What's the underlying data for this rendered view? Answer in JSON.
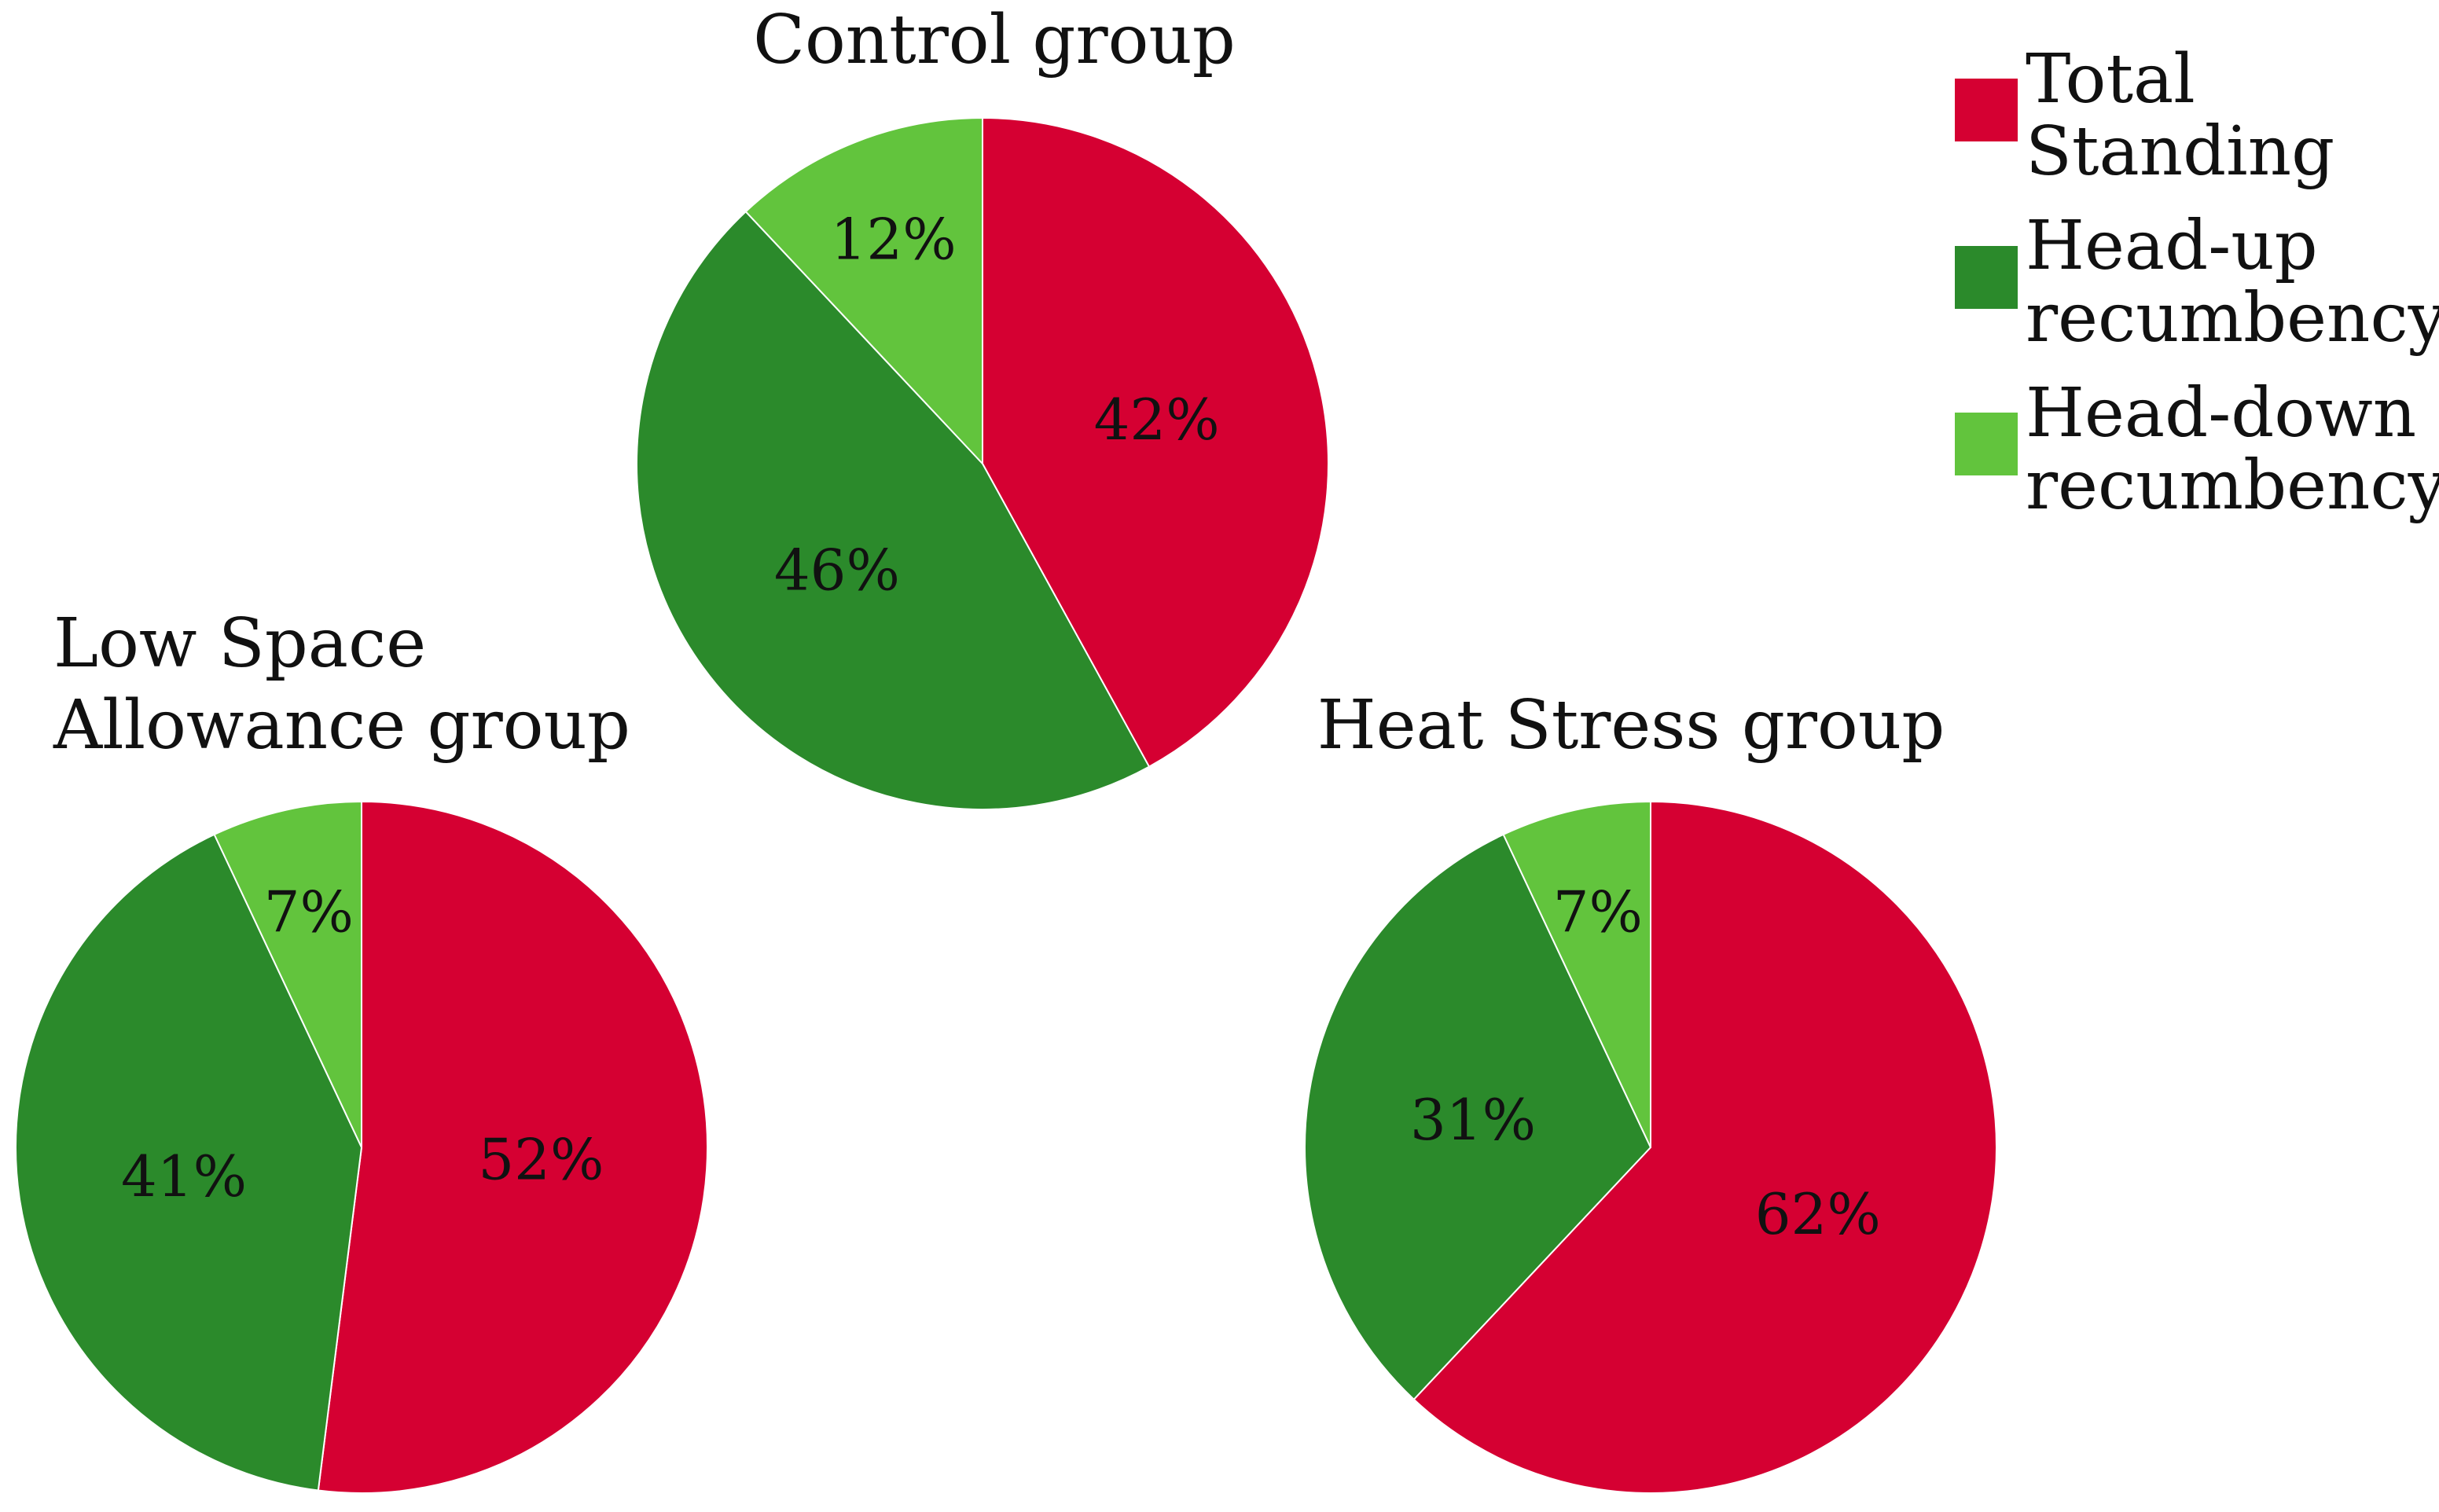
{
  "legend": [
    {
      "label_lines": [
        "Total",
        "Standing"
      ],
      "color": "#d50032"
    },
    {
      "label_lines": [
        "Head-up",
        "recumbency"
      ],
      "color": "#2b8a2b"
    },
    {
      "label_lines": [
        "Head-down",
        "recumbency"
      ],
      "color": "#62c43d"
    }
  ],
  "chart_data": [
    {
      "type": "pie",
      "title_lines": [
        "Control group"
      ],
      "categories": [
        "Total Standing",
        "Head-up recumbency",
        "Head-down recumbency"
      ],
      "values": [
        42,
        46,
        12
      ],
      "labels": [
        "42%",
        "46%",
        "12%"
      ]
    },
    {
      "type": "pie",
      "title_lines": [
        "Low Space",
        "Allowance group"
      ],
      "categories": [
        "Total Standing",
        "Head-up recumbency",
        "Head-down recumbency"
      ],
      "values": [
        52,
        41,
        7
      ],
      "labels": [
        "52%",
        "41%",
        "7%"
      ]
    },
    {
      "type": "pie",
      "title_lines": [
        "Heat Stress group"
      ],
      "categories": [
        "Total Standing",
        "Head-up recumbency",
        "Head-down recumbency"
      ],
      "values": [
        62,
        31,
        7
      ],
      "labels": [
        "62%",
        "31%",
        "7%"
      ]
    }
  ]
}
